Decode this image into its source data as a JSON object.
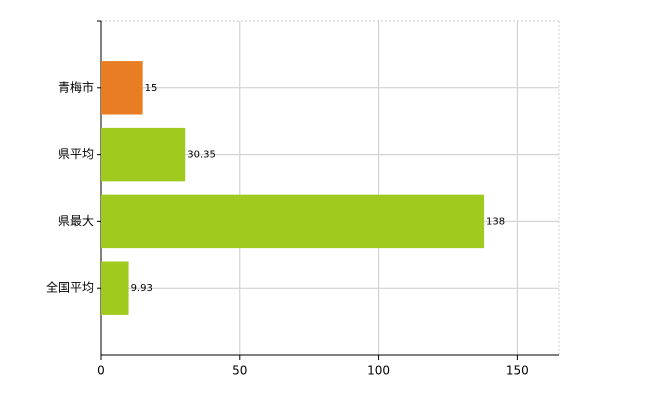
{
  "chart_data": {
    "type": "bar",
    "orientation": "horizontal",
    "categories": [
      "青梅市",
      "県平均",
      "県最大",
      "全国平均"
    ],
    "values": [
      15,
      30.35,
      138,
      9.93
    ],
    "colors": [
      "#e87d24",
      "#9fcb1e",
      "#9fcb1e",
      "#9fcb1e"
    ],
    "xlim": [
      0,
      165
    ],
    "xticks": [
      0,
      50,
      100,
      150
    ],
    "grid": true
  }
}
